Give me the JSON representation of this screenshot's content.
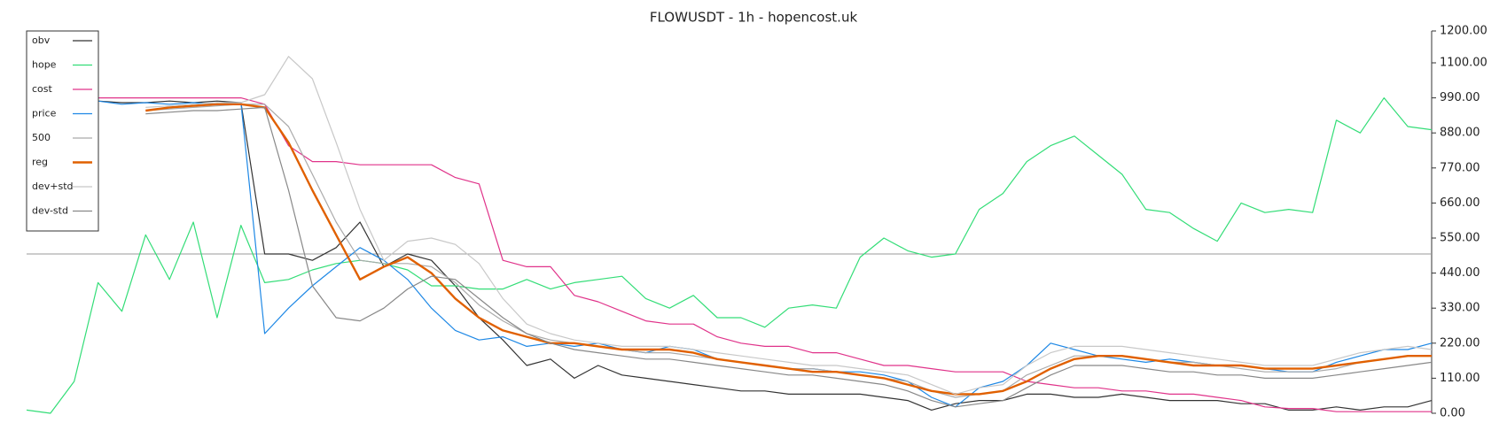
{
  "chart_data": {
    "type": "line",
    "title": "FLOWUSDT - 1h - hopencost.uk",
    "ylim": [
      0,
      1200
    ],
    "yticks": [
      {
        "value": 0,
        "label": "0.00"
      },
      {
        "value": 110,
        "label": "110.00"
      },
      {
        "value": 220,
        "label": "220.00"
      },
      {
        "value": 330,
        "label": "330.00"
      },
      {
        "value": 440,
        "label": "440.00"
      },
      {
        "value": 550,
        "label": "550.00"
      },
      {
        "value": 660,
        "label": "660.00"
      },
      {
        "value": 770,
        "label": "770.00"
      },
      {
        "value": 880,
        "label": "880.00"
      },
      {
        "value": 990,
        "label": "990.00"
      },
      {
        "value": 1100,
        "label": "1100.00"
      },
      {
        "value": 1200,
        "label": "1200.00"
      }
    ],
    "hline": 500,
    "legend": "upper left",
    "series": [
      {
        "name": "obv",
        "color": "#333333",
        "width": 1.2,
        "values": [
          null,
          null,
          null,
          980,
          975,
          975,
          980,
          975,
          980,
          975,
          500,
          500,
          480,
          520,
          600,
          460,
          500,
          480,
          400,
          300,
          230,
          150,
          170,
          110,
          150,
          120,
          110,
          100,
          90,
          80,
          70,
          70,
          60,
          60,
          60,
          60,
          50,
          40,
          10,
          30,
          40,
          40,
          60,
          60,
          50,
          50,
          60,
          50,
          40,
          40,
          40,
          30,
          30,
          10,
          10,
          20,
          10,
          20,
          20,
          40
        ]
      },
      {
        "name": "hope",
        "color": "#33dd77",
        "width": 1.2,
        "values": [
          10,
          0,
          100,
          410,
          320,
          560,
          420,
          600,
          300,
          590,
          410,
          420,
          450,
          470,
          480,
          470,
          450,
          400,
          400,
          390,
          390,
          420,
          390,
          410,
          420,
          430,
          360,
          330,
          370,
          300,
          300,
          270,
          330,
          340,
          330,
          490,
          550,
          510,
          490,
          500,
          640,
          690,
          790,
          840,
          870,
          810,
          750,
          640,
          630,
          580,
          540,
          660,
          630,
          640,
          630,
          920,
          880,
          990,
          900,
          890
        ]
      },
      {
        "name": "cost",
        "color": "#e0338a",
        "width": 1.2,
        "values": [
          null,
          null,
          null,
          990,
          990,
          990,
          990,
          990,
          990,
          990,
          970,
          840,
          790,
          790,
          780,
          780,
          780,
          780,
          740,
          720,
          480,
          460,
          460,
          370,
          350,
          320,
          290,
          280,
          280,
          240,
          220,
          210,
          210,
          190,
          190,
          170,
          150,
          150,
          140,
          130,
          130,
          130,
          100,
          90,
          80,
          80,
          70,
          70,
          60,
          60,
          50,
          40,
          20,
          15,
          15,
          5,
          5,
          5,
          5,
          5
        ]
      },
      {
        "name": "price",
        "color": "#1e88e5",
        "width": 1.2,
        "values": [
          null,
          null,
          null,
          980,
          970,
          975,
          970,
          975,
          970,
          975,
          250,
          330,
          400,
          460,
          520,
          480,
          420,
          330,
          260,
          230,
          240,
          210,
          220,
          210,
          220,
          200,
          190,
          210,
          200,
          170,
          160,
          150,
          140,
          140,
          130,
          130,
          120,
          100,
          50,
          20,
          80,
          100,
          150,
          220,
          200,
          180,
          170,
          160,
          170,
          160,
          150,
          150,
          140,
          130,
          130,
          160,
          180,
          200,
          200,
          220
        ]
      },
      {
        "name": "500",
        "color": "#aaaaaa",
        "width": 1.2,
        "values": [
          null,
          null,
          null,
          null,
          null,
          950,
          955,
          960,
          965,
          970,
          970,
          900,
          750,
          600,
          480,
          470,
          470,
          460,
          410,
          340,
          290,
          250,
          230,
          220,
          210,
          200,
          190,
          190,
          180,
          170,
          160,
          150,
          140,
          140,
          130,
          120,
          110,
          100,
          70,
          50,
          60,
          70,
          120,
          150,
          180,
          180,
          180,
          170,
          160,
          160,
          150,
          140,
          130,
          130,
          130,
          140,
          160,
          170,
          180,
          180
        ]
      },
      {
        "name": "reg",
        "color": "#e06000",
        "width": 2.4,
        "values": [
          null,
          null,
          null,
          null,
          null,
          950,
          960,
          965,
          970,
          970,
          960,
          850,
          700,
          560,
          420,
          460,
          490,
          440,
          360,
          300,
          260,
          240,
          220,
          220,
          210,
          200,
          200,
          200,
          190,
          170,
          160,
          150,
          140,
          130,
          130,
          120,
          110,
          90,
          70,
          60,
          60,
          70,
          100,
          140,
          170,
          180,
          180,
          170,
          160,
          150,
          150,
          150,
          140,
          140,
          140,
          150,
          160,
          170,
          180,
          180
        ]
      },
      {
        "name": "dev+std",
        "color": "#c8c8c8",
        "width": 1.2,
        "values": [
          null,
          null,
          null,
          null,
          null,
          960,
          965,
          970,
          975,
          975,
          1000,
          1120,
          1050,
          850,
          640,
          480,
          540,
          550,
          530,
          470,
          360,
          280,
          250,
          230,
          220,
          210,
          210,
          210,
          200,
          190,
          180,
          170,
          160,
          150,
          150,
          140,
          130,
          120,
          90,
          60,
          80,
          90,
          150,
          190,
          210,
          210,
          210,
          200,
          190,
          180,
          170,
          160,
          150,
          150,
          150,
          170,
          190,
          200,
          210,
          200
        ]
      },
      {
        "name": "dev-std",
        "color": "#888888",
        "width": 1.2,
        "values": [
          null,
          null,
          null,
          null,
          null,
          940,
          945,
          950,
          950,
          955,
          960,
          700,
          400,
          300,
          290,
          330,
          390,
          430,
          420,
          360,
          300,
          250,
          220,
          200,
          190,
          180,
          170,
          170,
          160,
          150,
          140,
          130,
          120,
          120,
          110,
          100,
          90,
          70,
          40,
          20,
          30,
          40,
          80,
          120,
          150,
          150,
          150,
          140,
          130,
          130,
          120,
          120,
          110,
          110,
          110,
          120,
          130,
          140,
          150,
          160
        ]
      }
    ]
  }
}
